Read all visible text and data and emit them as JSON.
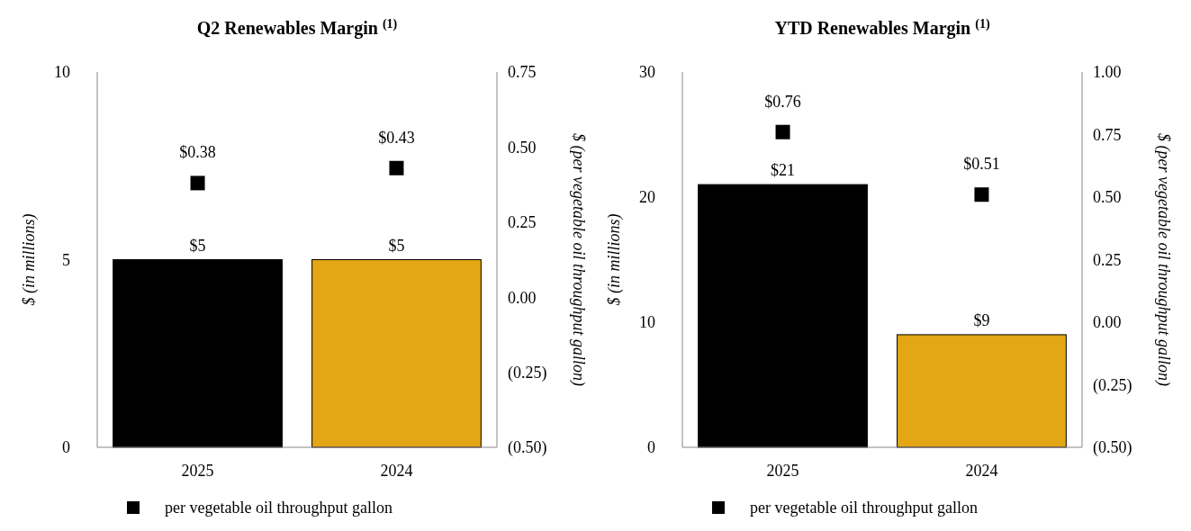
{
  "chart_data": [
    {
      "type": "bar",
      "title": "Q2 Renewables Margin $^{(1)}$",
      "ylabel": "$ (in millions)",
      "y2label": "$ (per vegetable oil throughput gallon)",
      "categories": [
        "2025",
        "2024"
      ],
      "ylim": [
        0,
        10
      ],
      "yticks": [
        0,
        5,
        10
      ],
      "y2lim": [
        -0.5,
        0.75
      ],
      "y2ticks": [
        {
          "value": -0.5,
          "label": "(0.50)"
        },
        {
          "value": -0.25,
          "label": "(0.25)"
        },
        {
          "value": 0,
          "label": "0.00"
        },
        {
          "value": 0.25,
          "label": "0.25"
        },
        {
          "value": 0.5,
          "label": "0.50"
        },
        {
          "value": 0.75,
          "label": "0.75"
        }
      ],
      "legend": "bottom",
      "marker": "square",
      "series": [
        {
          "colors": [
            "#000000",
            "#e3a614"
          ],
          "values": [
            5,
            5
          ],
          "value_labels": [
            "$5",
            "$5"
          ]
        },
        {
          "type": "scatter",
          "name": "per vegetable oil throughput gallon",
          "color": "#000000",
          "axis": "y2",
          "values": [
            0.38,
            0.43
          ],
          "value_labels": [
            "$0.38",
            "$0.43"
          ]
        }
      ]
    },
    {
      "type": "bar",
      "title": "YTD Renewables Margin $^{(1)}$",
      "ylabel": "$ (in millions)",
      "y2label": "$ (per vegetable oil throughput gallon)",
      "categories": [
        "2025",
        "2024"
      ],
      "ylim": [
        0,
        30
      ],
      "yticks": [
        0,
        10,
        20,
        30
      ],
      "y2lim": [
        -0.5,
        1.0
      ],
      "y2ticks": [
        {
          "value": -0.5,
          "label": "(0.50)"
        },
        {
          "value": -0.25,
          "label": "(0.25)"
        },
        {
          "value": 0,
          "label": "0.00"
        },
        {
          "value": 0.25,
          "label": "0.25"
        },
        {
          "value": 0.5,
          "label": "0.50"
        },
        {
          "value": 0.75,
          "label": "0.75"
        },
        {
          "value": 1.0,
          "label": "1.00"
        }
      ],
      "legend": "bottom",
      "marker": "square",
      "series": [
        {
          "colors": [
            "#000000",
            "#e3a614"
          ],
          "values": [
            21,
            9
          ],
          "value_labels": [
            "$21",
            "$9"
          ]
        },
        {
          "type": "scatter",
          "name": "per vegetable oil throughput gallon",
          "color": "#000000",
          "axis": "y2",
          "values": [
            0.76,
            0.51
          ],
          "value_labels": [
            "$0.76",
            "$0.51"
          ]
        }
      ]
    }
  ]
}
